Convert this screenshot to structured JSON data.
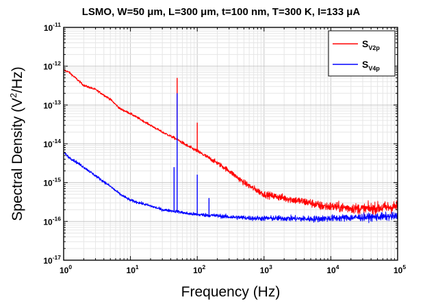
{
  "chart_data": {
    "type": "line",
    "title": "LSMO, W=50 μm, L=300 μm, t=100 nm, T=300 K, I=133 μA",
    "xlabel": "Frequency (Hz)",
    "ylabel": {
      "before": "Spectral Density (V",
      "sup": "2",
      "after": "/Hz)"
    },
    "x_scale": "log",
    "y_scale": "log",
    "xlim": [
      1,
      100000
    ],
    "ylim": [
      1e-17,
      1e-11
    ],
    "grid": true,
    "legend_position": "top-right",
    "x_ticks": [
      {
        "value": 1,
        "base": "10",
        "exp": "0"
      },
      {
        "value": 10,
        "base": "10",
        "exp": "1"
      },
      {
        "value": 100,
        "base": "10",
        "exp": "2"
      },
      {
        "value": 1000,
        "base": "10",
        "exp": "3"
      },
      {
        "value": 10000,
        "base": "10",
        "exp": "4"
      },
      {
        "value": 100000,
        "base": "10",
        "exp": "5"
      }
    ],
    "y_ticks": [
      {
        "value": 1e-11,
        "base": "10",
        "exp": "-11"
      },
      {
        "value": 1e-12,
        "base": "10",
        "exp": "-12"
      },
      {
        "value": 1e-13,
        "base": "10",
        "exp": "-13"
      },
      {
        "value": 1e-14,
        "base": "10",
        "exp": "-14"
      },
      {
        "value": 1e-15,
        "base": "10",
        "exp": "-15"
      },
      {
        "value": 1e-16,
        "base": "10",
        "exp": "-16"
      },
      {
        "value": 1e-17,
        "base": "10",
        "exp": "-17"
      }
    ],
    "series": [
      {
        "name": "S",
        "name_sub": "V2p",
        "color": "#ff0000",
        "x": [
          1,
          1.2,
          1.5,
          2,
          3,
          5,
          7,
          10,
          20,
          30,
          50,
          70,
          100,
          200,
          300,
          500,
          700,
          1000,
          2000,
          3000,
          5000,
          7000,
          10000,
          20000,
          30000,
          50000,
          100000
        ],
        "y": [
          8e-13,
          7e-13,
          5e-13,
          3.2e-13,
          2.5e-13,
          1.4e-13,
          8e-14,
          6e-14,
          3e-14,
          2e-14,
          1.3e-14,
          9e-15,
          6.5e-15,
          3.2e-15,
          2e-15,
          1e-15,
          7e-16,
          5e-16,
          4e-16,
          3.5e-16,
          3e-16,
          2.5e-16,
          2.4e-16,
          2.2e-16,
          2.1e-16,
          2.2e-16,
          2.4e-16
        ],
        "spikes": [
          {
            "x": 50,
            "y": 5e-13
          },
          {
            "x": 100,
            "y": 3.5e-14
          }
        ]
      },
      {
        "name": "S",
        "name_sub": "V4p",
        "color": "#0000ff",
        "x": [
          1,
          1.2,
          1.5,
          2,
          3,
          5,
          7,
          10,
          20,
          30,
          50,
          70,
          100,
          200,
          300,
          500,
          700,
          1000,
          2000,
          5000,
          10000,
          20000,
          50000,
          100000
        ],
        "y": [
          6e-15,
          4.5e-15,
          3.5e-15,
          2.5e-15,
          1.5e-15,
          8e-16,
          5e-16,
          3.5e-16,
          2.5e-16,
          2e-16,
          1.8e-16,
          1.6e-16,
          1.5e-16,
          1.4e-16,
          1.3e-16,
          1.25e-16,
          1.2e-16,
          1.2e-16,
          1.2e-16,
          1.15e-16,
          1.2e-16,
          1.25e-16,
          1.3e-16,
          1.35e-16
        ],
        "spikes": [
          {
            "x": 50,
            "y": 2e-13
          },
          {
            "x": 45,
            "y": 2.5e-15
          },
          {
            "x": 100,
            "y": 1.6e-15
          },
          {
            "x": 150,
            "y": 4e-16
          }
        ]
      }
    ]
  }
}
